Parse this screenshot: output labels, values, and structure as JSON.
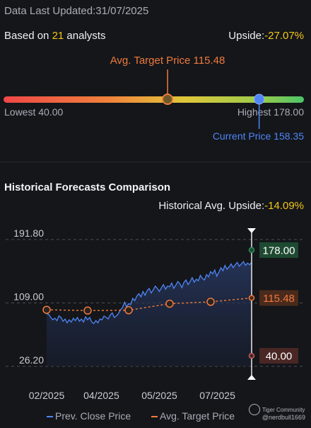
{
  "header": {
    "updated_label": "Data Last Updated:",
    "updated_date": "31/07/2025",
    "based_prefix": "Based on ",
    "analyst_count": "21",
    "based_suffix": " analysts",
    "upside_label": "Upside:",
    "upside_value": "-27.07%"
  },
  "target_bar": {
    "avg_label": "Avg. Target Price 115.48",
    "lowest_label": "Lowest 40.00",
    "highest_label": "Highest 178.00",
    "current_label": "Current Price 158.35",
    "lowest": 40.0,
    "highest": 178.0,
    "avg": 115.48,
    "current": 158.35,
    "avg_color": "#f07a3c",
    "current_color": "#4f86f7"
  },
  "historical": {
    "title": "Historical Forecasts Comparison",
    "upside_label": "Historical Avg. Upside:",
    "upside_value": "-14.09%"
  },
  "chart_data": {
    "type": "line",
    "y_ticks": [
      "191.80",
      "109.00",
      "26.20"
    ],
    "ylim": [
      26.2,
      191.8
    ],
    "x_ticks": [
      "02/2025",
      "04/2025",
      "05/2025",
      "07/2025"
    ],
    "x_tick_pos": [
      0.0,
      0.267,
      0.55,
      0.833
    ],
    "series": [
      {
        "name": "Prev. Close Price",
        "color": "#4f86f7",
        "x": [
          0,
          0.01,
          0.02,
          0.03,
          0.04,
          0.05,
          0.06,
          0.07,
          0.08,
          0.09,
          0.1,
          0.11,
          0.12,
          0.13,
          0.14,
          0.15,
          0.16,
          0.17,
          0.18,
          0.19,
          0.2,
          0.21,
          0.22,
          0.23,
          0.24,
          0.25,
          0.26,
          0.27,
          0.28,
          0.29,
          0.3,
          0.31,
          0.32,
          0.33,
          0.34,
          0.35,
          0.36,
          0.37,
          0.38,
          0.39,
          0.4,
          0.41,
          0.42,
          0.43,
          0.44,
          0.45,
          0.46,
          0.47,
          0.48,
          0.49,
          0.5,
          0.51,
          0.52,
          0.53,
          0.54,
          0.55,
          0.56,
          0.57,
          0.58,
          0.59,
          0.6,
          0.61,
          0.62,
          0.63,
          0.64,
          0.65,
          0.66,
          0.67,
          0.68,
          0.69,
          0.7,
          0.71,
          0.72,
          0.73,
          0.74,
          0.75,
          0.76,
          0.77,
          0.78,
          0.79,
          0.8,
          0.81,
          0.82,
          0.83,
          0.84,
          0.85,
          0.86,
          0.87,
          0.88,
          0.89,
          0.9,
          0.91,
          0.92,
          0.93,
          0.94,
          0.95,
          0.96,
          0.97,
          0.98,
          0.99,
          1.0
        ],
        "values": [
          95,
          94,
          90,
          87,
          89,
          86,
          92,
          90,
          85,
          88,
          83,
          87,
          84,
          89,
          86,
          90,
          85,
          88,
          84,
          91,
          87,
          90,
          84,
          82,
          86,
          83,
          88,
          87,
          92,
          90,
          88,
          93,
          96,
          90,
          92,
          95,
          100,
          103,
          110,
          104,
          108,
          107,
          115,
          112,
          118,
          121,
          117,
          124,
          119,
          125,
          128,
          122,
          126,
          131,
          128,
          124,
          129,
          133,
          127,
          131,
          130,
          135,
          128,
          132,
          137,
          134,
          129,
          136,
          139,
          133,
          137,
          142,
          136,
          140,
          138,
          145,
          141,
          139,
          146,
          143,
          150,
          147,
          152,
          144,
          149,
          155,
          151,
          158,
          153,
          156,
          160,
          155,
          159,
          162,
          157,
          160,
          163,
          158,
          161,
          159,
          162
        ]
      },
      {
        "name": "Avg. Target Price",
        "color": "#f07a3c",
        "x": [
          0.0,
          0.2,
          0.4,
          0.6,
          0.8,
          1.0
        ],
        "values": [
          100.0,
          99.0,
          99.5,
          108.0,
          110.5,
          115.48
        ]
      }
    ],
    "markers": [
      {
        "label": "178.00",
        "value": 178.0,
        "color": "#2e8f5a",
        "bg": "#1e4a32"
      },
      {
        "label": "115.48",
        "value": 115.48,
        "color": "#f07a3c",
        "bg": "#4a2a1c"
      },
      {
        "label": "40.00",
        "value": 40.0,
        "color": "#c0605a",
        "bg": "#4a2624"
      }
    ]
  },
  "legend": {
    "close_label": "Prev. Close Price",
    "target_label": "Avg. Target Price"
  },
  "watermark": {
    "brand": "Tiger Community",
    "handle": "@nerdbull1669"
  }
}
